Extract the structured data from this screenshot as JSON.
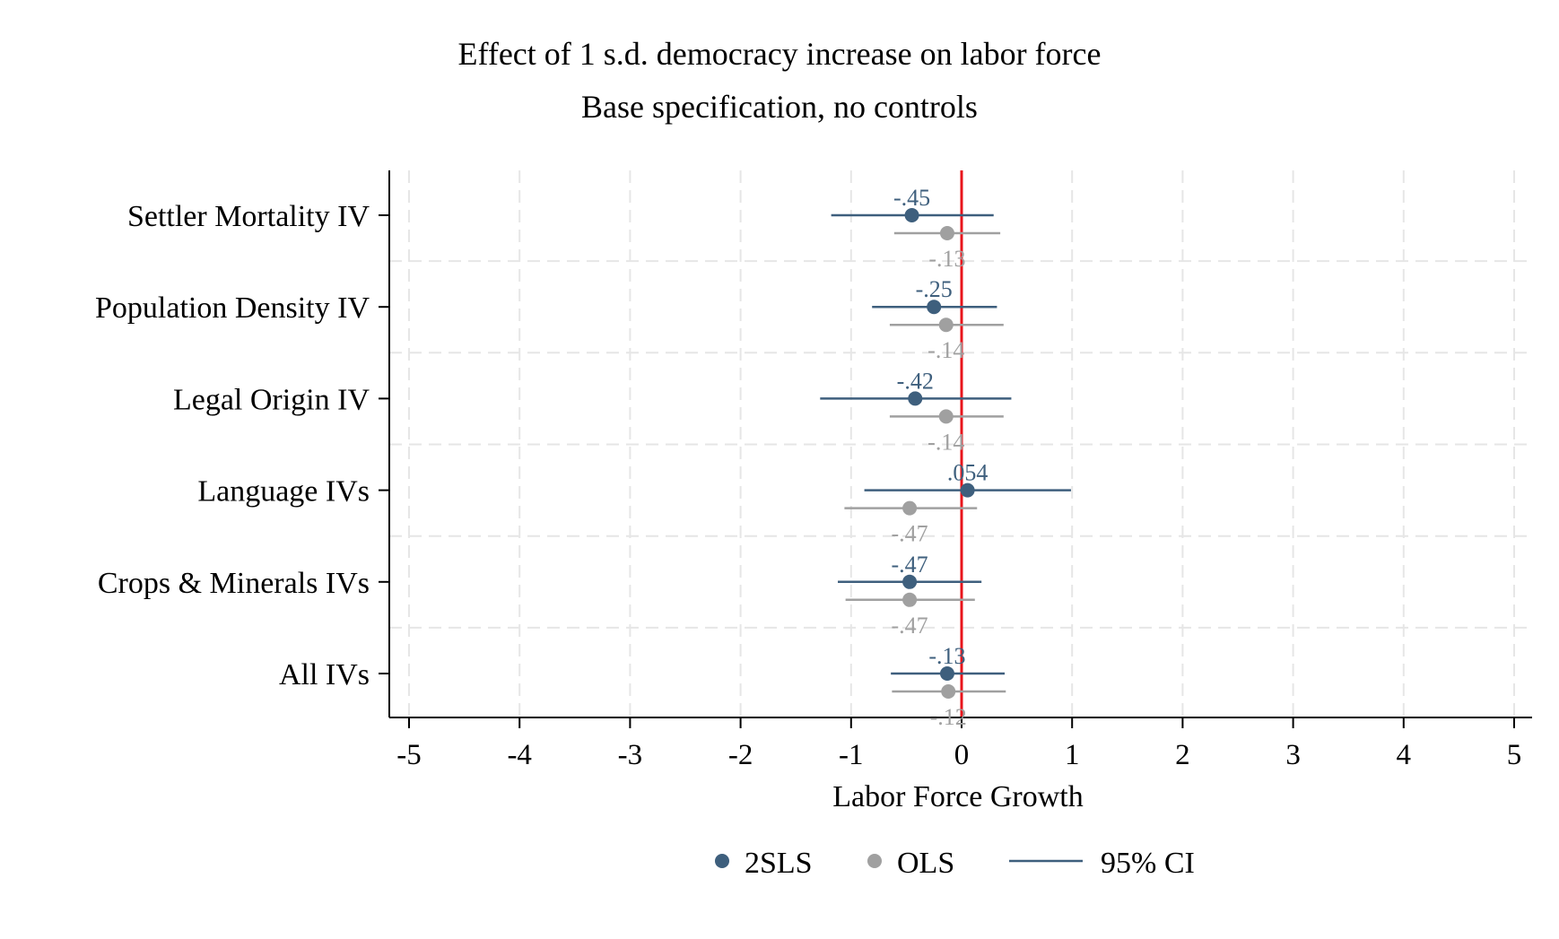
{
  "chart_data": {
    "type": "scatter",
    "title": "Effect of 1 s.d. democracy increase on labor force",
    "subtitle": "Base specification, no controls",
    "xlabel": "Labor Force Growth",
    "ylabel": "",
    "xlim": [
      -5,
      5
    ],
    "xticks": [
      "-5",
      "-4",
      "-3",
      "-2",
      "-1",
      "0",
      "1",
      "2",
      "3",
      "4",
      "5"
    ],
    "reference_line_x": 0,
    "categories": [
      "Settler Mortality IV",
      "Population Density IV",
      "Legal Origin IV",
      "Language IVs",
      "Crops & Minerals IVs",
      "All IVs"
    ],
    "series": [
      {
        "name": "2SLS",
        "color": "#3e5f7d",
        "points": [
          {
            "estimate": -0.45,
            "label": "-.45",
            "ci": [
              -1.18,
              0.29
            ]
          },
          {
            "estimate": -0.25,
            "label": "-.25",
            "ci": [
              -0.81,
              0.32
            ]
          },
          {
            "estimate": -0.42,
            "label": "-.42",
            "ci": [
              -1.28,
              0.45
            ]
          },
          {
            "estimate": 0.054,
            "label": ".054",
            "ci": [
              -0.88,
              0.99
            ]
          },
          {
            "estimate": -0.47,
            "label": "-.47",
            "ci": [
              -1.12,
              0.18
            ]
          },
          {
            "estimate": -0.13,
            "label": "-.13",
            "ci": [
              -0.64,
              0.39
            ]
          }
        ]
      },
      {
        "name": "OLS",
        "color": "#a0a0a0",
        "points": [
          {
            "estimate": -0.13,
            "label": "-.13",
            "ci": [
              -0.61,
              0.35
            ]
          },
          {
            "estimate": -0.14,
            "label": "-.14",
            "ci": [
              -0.65,
              0.38
            ]
          },
          {
            "estimate": -0.14,
            "label": "-.14",
            "ci": [
              -0.65,
              0.38
            ]
          },
          {
            "estimate": -0.47,
            "label": "-.47",
            "ci": [
              -1.06,
              0.14
            ]
          },
          {
            "estimate": -0.47,
            "label": "-.47",
            "ci": [
              -1.05,
              0.12
            ]
          },
          {
            "estimate": -0.12,
            "label": "-.12",
            "ci": [
              -0.63,
              0.4
            ]
          }
        ]
      }
    ],
    "legend": {
      "placement": "bottom",
      "items": [
        {
          "label": "2SLS",
          "kind": "dot",
          "color": "#3e5f7d"
        },
        {
          "label": "OLS",
          "kind": "dot",
          "color": "#a0a0a0"
        },
        {
          "label": "95% CI",
          "kind": "line",
          "color": "#3e5f7d"
        }
      ]
    },
    "grid": true,
    "colors": {
      "reference_line": "#e8141b",
      "axis": "#000000",
      "grid": "#e6e6e6"
    }
  }
}
